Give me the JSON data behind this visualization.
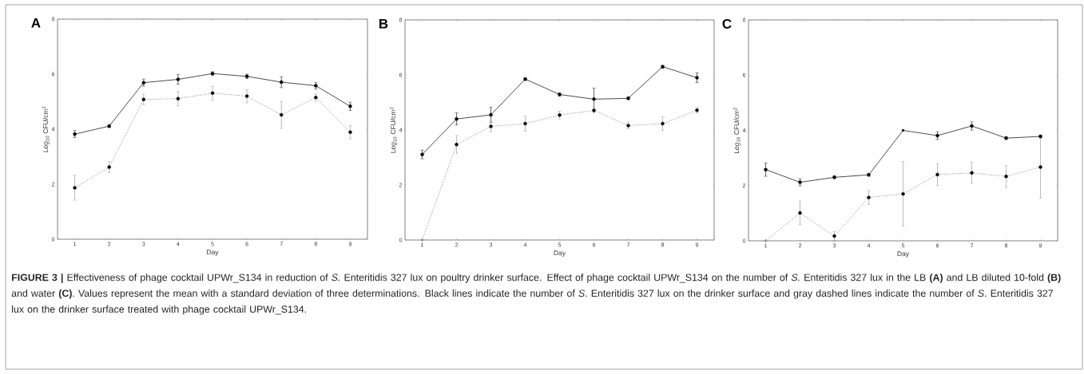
{
  "chart_data": [
    {
      "type": "line",
      "title": "A",
      "xlabel": "Day",
      "ylabel": "Log$_{10}$ CFU/cm$^{2}$",
      "x": [
        1,
        2,
        3,
        4,
        5,
        6,
        7,
        8,
        9
      ],
      "xlim": [
        0.5,
        9.5
      ],
      "xticks": [
        1,
        2,
        3,
        4,
        5,
        6,
        7,
        8,
        9
      ],
      "ylim": [
        0,
        8
      ],
      "yticks": [
        0,
        2,
        4,
        6,
        8
      ],
      "marker": "square",
      "series": [
        {
          "color": "#000000",
          "line_style": "solid",
          "values": [
            3.82,
            4.11,
            5.69,
            5.81,
            6.02,
            5.92,
            5.71,
            5.58,
            4.83
          ],
          "errors": [
            0.13,
            0.05,
            0.13,
            0.18,
            0.07,
            0.08,
            0.2,
            0.12,
            0.15
          ]
        },
        {
          "color": "#909090",
          "line_style": "dashed",
          "values": [
            1.87,
            2.62,
            5.08,
            5.11,
            5.31,
            5.2,
            4.52,
            5.15,
            3.89
          ],
          "errors": [
            0.45,
            0.2,
            0.19,
            0.26,
            0.25,
            0.24,
            0.49,
            0.13,
            0.24
          ]
        }
      ],
      "annotations": [
        "**FIGURE 3 |** Effectiveness of phage cocktail UPWr_S134 in reduction of *S.* Enteritidis 327 lux on poultry drinker surface. Effect of phage cocktail UPWr_S134 on the number of *S.* Enteritidis 327 lux in the LB **(A)** and LB diluted 10-fold **(B)** and water **(C)**. Values represent the mean with a standard deviation of three determinations. Black lines indicate the number of *S*. Enteritidis 327 lux on the drinker surface and gray dashed lines indicate the number of *S*. Enteritidis 327 lux on the drinker surface treated with phage cocktail UPWr_S134."
      ]
    },
    {
      "type": "line",
      "title": "B",
      "xlabel": "Day",
      "ylabel": "Log$_{10}$ CFU/cm$^{2}$",
      "x": [
        1,
        2,
        3,
        4,
        5,
        6,
        7,
        8,
        9
      ],
      "xlim": [
        0.5,
        9.5
      ],
      "xticks": [
        1,
        2,
        3,
        4,
        5,
        6,
        7,
        8,
        9
      ],
      "ylim": [
        0,
        8
      ],
      "yticks": [
        0,
        2,
        4,
        6,
        8
      ],
      "marker": "square",
      "series": [
        {
          "color": "#000000",
          "line_style": "solid",
          "values": [
            3.11,
            4.4,
            4.55,
            5.85,
            5.29,
            5.12,
            5.15,
            6.3,
            5.9
          ],
          "errors": [
            0.16,
            0.22,
            0.28,
            0.05,
            0.06,
            0.4,
            0.05,
            0.05,
            0.18
          ]
        },
        {
          "color": "#909090",
          "line_style": "dashed",
          "values": [
            0,
            3.47,
            4.13,
            4.23,
            4.54,
            4.71,
            4.16,
            4.23,
            4.72
          ],
          "errors": [
            null,
            0.33,
            0.2,
            0.27,
            0.14,
            0.09,
            0.12,
            0.25,
            0.1
          ]
        }
      ]
    },
    {
      "type": "line",
      "title": "C",
      "xlabel": "Day",
      "ylabel": "Log$_{10}$ CFU/cm$^{2}$",
      "x": [
        1,
        2,
        3,
        4,
        5,
        6,
        7,
        8,
        9
      ],
      "xlim": [
        0.5,
        9.5
      ],
      "xticks": [
        1,
        2,
        3,
        4,
        5,
        6,
        7,
        8,
        9
      ],
      "ylim": [
        0,
        8
      ],
      "yticks": [
        0,
        2,
        4,
        6,
        8
      ],
      "marker": "square",
      "series": [
        {
          "color": "#000000",
          "line_style": "solid",
          "values": [
            2.58,
            2.12,
            2.3,
            2.39,
            4.0,
            3.81,
            4.16,
            3.72,
            3.78
          ],
          "errors": [
            0.24,
            0.13,
            0.05,
            0.05,
            null,
            0.14,
            0.15,
            0.05,
            0.05
          ]
        },
        {
          "color": "#909090",
          "line_style": "dashed",
          "values": [
            0,
            1.01,
            0.17,
            1.57,
            1.7,
            2.4,
            2.46,
            2.33,
            2.67
          ],
          "errors": [
            null,
            0.43,
            0.17,
            0.25,
            1.17,
            0.4,
            0.38,
            0.4,
            1.12
          ]
        }
      ]
    }
  ]
}
